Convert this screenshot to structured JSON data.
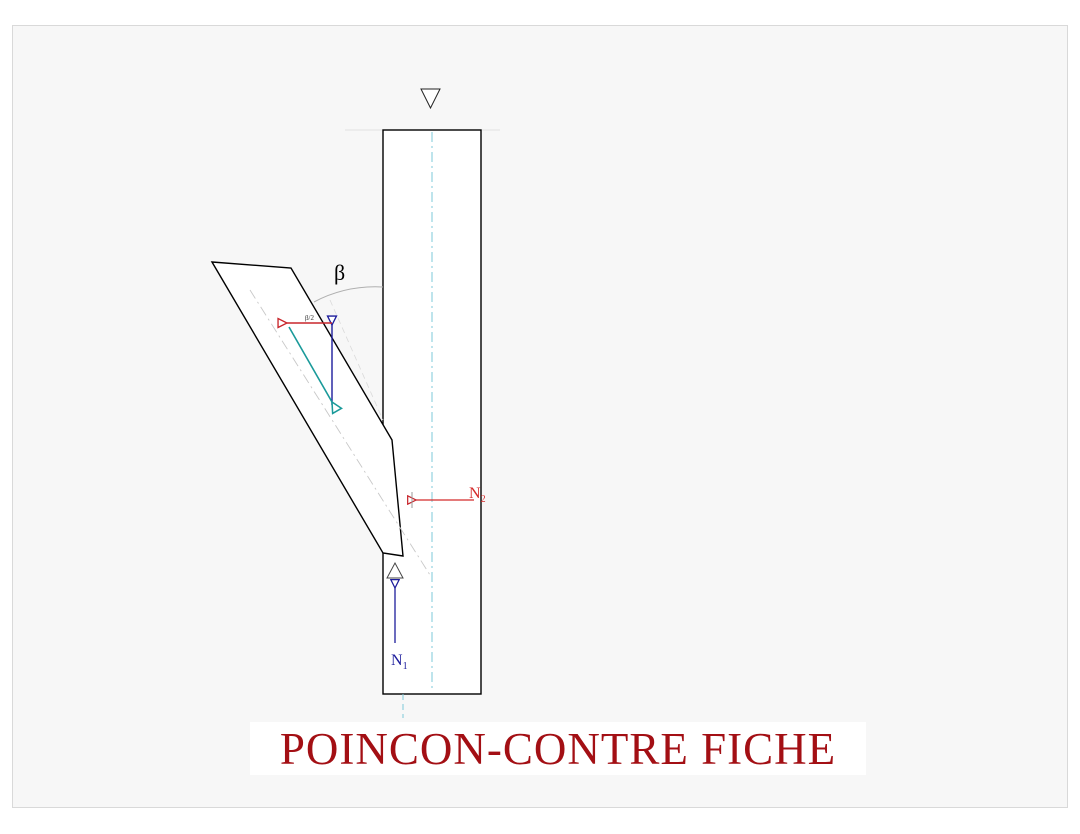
{
  "title": "POINCON-CONTRE FICHE",
  "labels": {
    "angle": "β",
    "half_angle": "β/2",
    "n1": "N",
    "n1_sub": "1",
    "n2": "N",
    "n2_sub": "2"
  },
  "colors": {
    "title": "#a30f14",
    "n1_force": "#1c1c9c",
    "n2_force": "#d42a2a",
    "component_blue": "#1c1c9c",
    "component_teal": "#1a9a9a",
    "component_red": "#c8262c",
    "axis": "#7ec8d8",
    "outline": "#000000"
  },
  "icons": {
    "top_support": "triangle-down-icon",
    "bottom_support": "triangle-up-icon"
  }
}
